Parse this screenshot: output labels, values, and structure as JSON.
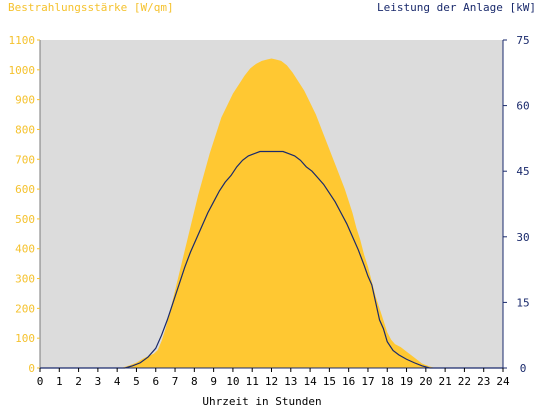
{
  "chart_data": {
    "type": "area",
    "title_left": "Bestrahlungsstärke [W/qm]",
    "title_right": "Leistung der Anlage [kW]",
    "xlabel": "Uhrzeit in Stunden",
    "xlim": [
      0,
      24
    ],
    "ylim_left": [
      0,
      1100
    ],
    "ylim_right": [
      0,
      75
    ],
    "x_ticks": [
      "0",
      "1",
      "2",
      "3",
      "4",
      "5",
      "6",
      "7",
      "8",
      "9",
      "10",
      "11",
      "12",
      "13",
      "14",
      "15",
      "16",
      "17",
      "18",
      "19",
      "20",
      "21",
      "22",
      "23",
      "24"
    ],
    "y_left_ticks": [
      "0",
      "100",
      "200",
      "300",
      "400",
      "500",
      "600",
      "700",
      "800",
      "900",
      "1000",
      "1100"
    ],
    "y_right_ticks": [
      "0",
      "15",
      "30",
      "45",
      "60",
      "75"
    ],
    "grid": false,
    "colors": {
      "plot_background": "#dcdcdc",
      "irradiance_fill": "#ffc832",
      "power_line": "#1a2a6c",
      "left_axis": "#f5c22e",
      "right_axis": "#1a2a6c"
    },
    "series": [
      {
        "axis": "left",
        "style": "area",
        "x": [
          0,
          4.2,
          4.6,
          5.0,
          5.3,
          5.6,
          5.9,
          6.1,
          6.3,
          6.5,
          6.7,
          7.0,
          7.3,
          7.6,
          7.9,
          8.2,
          8.5,
          8.8,
          9.1,
          9.4,
          9.7,
          10.0,
          10.3,
          10.6,
          10.9,
          11.2,
          11.5,
          11.8,
          12.0,
          12.2,
          12.5,
          12.8,
          13.1,
          13.4,
          13.7,
          14.0,
          14.3,
          14.6,
          14.9,
          15.2,
          15.5,
          15.8,
          16.0,
          16.2,
          16.4,
          16.6,
          16.8,
          17.0,
          17.2,
          17.4,
          17.6,
          17.8,
          18.0,
          18.2,
          18.4,
          18.7,
          19.0,
          19.4,
          19.8,
          20.2,
          20.5,
          21,
          24
        ],
        "values": [
          0,
          0,
          8,
          18,
          30,
          40,
          48,
          60,
          90,
          130,
          180,
          260,
          340,
          420,
          500,
          580,
          650,
          720,
          780,
          840,
          880,
          920,
          950,
          980,
          1005,
          1020,
          1030,
          1035,
          1038,
          1035,
          1030,
          1015,
          990,
          960,
          930,
          890,
          850,
          800,
          750,
          700,
          650,
          600,
          560,
          520,
          470,
          430,
          380,
          340,
          290,
          240,
          200,
          160,
          120,
          95,
          80,
          70,
          55,
          35,
          15,
          5,
          0,
          0,
          0
        ]
      },
      {
        "axis": "right",
        "style": "line",
        "x": [
          0,
          4.4,
          4.8,
          5.2,
          5.6,
          6.0,
          6.3,
          6.6,
          6.9,
          7.2,
          7.5,
          7.8,
          8.1,
          8.4,
          8.7,
          9.0,
          9.3,
          9.6,
          9.9,
          10.2,
          10.5,
          10.8,
          11.1,
          11.4,
          11.7,
          12.0,
          12.3,
          12.6,
          12.9,
          13.2,
          13.5,
          13.8,
          14.1,
          14.4,
          14.7,
          15.0,
          15.3,
          15.6,
          15.9,
          16.2,
          16.5,
          16.8,
          17.0,
          17.2,
          17.4,
          17.6,
          17.8,
          18.0,
          18.3,
          18.6,
          19.0,
          19.4,
          19.8,
          20.2,
          20.5,
          24
        ],
        "values": [
          0,
          0,
          0.5,
          1.2,
          2.5,
          4.5,
          7.5,
          11,
          15,
          19,
          23,
          26.5,
          29.5,
          32.5,
          35.5,
          38,
          40.5,
          42.5,
          44,
          46,
          47.5,
          48.5,
          49,
          49.5,
          49.5,
          49.5,
          49.5,
          49.5,
          49,
          48.5,
          47.5,
          46,
          45,
          43.5,
          42,
          40,
          38,
          35.5,
          33,
          30,
          27,
          23.5,
          21,
          19,
          15,
          11,
          9,
          6,
          4,
          3,
          2,
          1.2,
          0.5,
          0,
          0,
          0
        ]
      }
    ]
  }
}
